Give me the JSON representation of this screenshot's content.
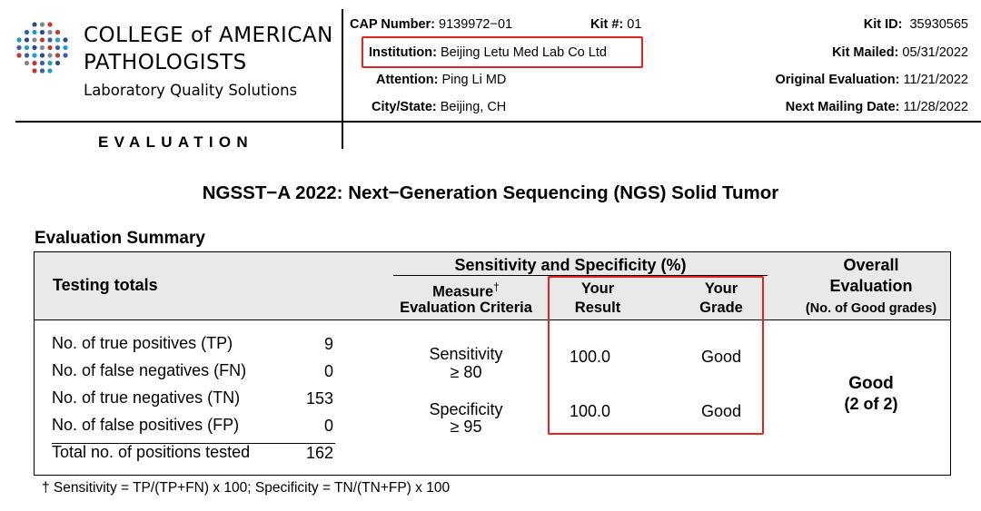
{
  "logo": {
    "line1": "COLLEGE of AMERICAN",
    "line2": "PATHOLOGISTS",
    "line3": "Laboratory Quality Solutions",
    "dot_colors": [
      "#2b4c8c",
      "#c0392b",
      "#1f9cc9",
      "#7f8c8d",
      "#3a5fa8"
    ]
  },
  "header": {
    "section_label": "EVALUATION",
    "cap_number_label": "CAP Number:",
    "cap_number": "9139972−01",
    "kit_no_label": "Kit #:",
    "kit_no": "01",
    "institution_label": "Institution:",
    "institution": "Beijing Letu Med Lab Co Ltd",
    "attention_label": "Attention:",
    "attention": "Ping Li MD",
    "city_label": "City/State:",
    "city": "Beijing, CH",
    "kit_id_label": "Kit ID:",
    "kit_id": "35930565",
    "kit_mailed_label": "Kit Mailed:",
    "kit_mailed": "05/31/2022",
    "original_eval_label": "Original Evaluation:",
    "original_eval": "11/21/2022",
    "next_mailing_label": "Next Mailing Date:",
    "next_mailing": "11/28/2022"
  },
  "title": "NGSST−A 2022: Next−Generation Sequencing (NGS) Solid Tumor",
  "summary": {
    "heading": "Evaluation Summary",
    "col_testing_totals": "Testing totals",
    "col_sens_spec": "Sensitivity and Specificity (%)",
    "col_measure_l1": "Measure",
    "col_measure_dagger": "†",
    "col_measure_l2": "Evaluation Criteria",
    "col_result_l1": "Your",
    "col_result_l2": "Result",
    "col_grade_l1": "Your",
    "col_grade_l2": "Grade",
    "col_overall_l1": "Overall",
    "col_overall_l2": "Evaluation",
    "col_overall_l3": "(No. of Good grades)",
    "totals": [
      {
        "label": "No. of true positives (TP)",
        "value": "9"
      },
      {
        "label": "No. of false negatives (FN)",
        "value": "0"
      },
      {
        "label": "No. of true negatives (TN)",
        "value": "153"
      },
      {
        "label": "No. of false positives (FP)",
        "value": "0"
      },
      {
        "label": "Total no. of positions tested",
        "value": "162"
      }
    ],
    "measures": [
      {
        "name": "Sensitivity",
        "criteria": "≥ 80",
        "result": "100.0",
        "grade": "Good"
      },
      {
        "name": "Specificity",
        "criteria": "≥ 95",
        "result": "100.0",
        "grade": "Good"
      }
    ],
    "overall": "Good",
    "overall_count": "(2 of 2)"
  },
  "footnote": "† Sensitivity = TP/(TP+FN) x 100; Specificity = TN/(TN+FP) x 100"
}
